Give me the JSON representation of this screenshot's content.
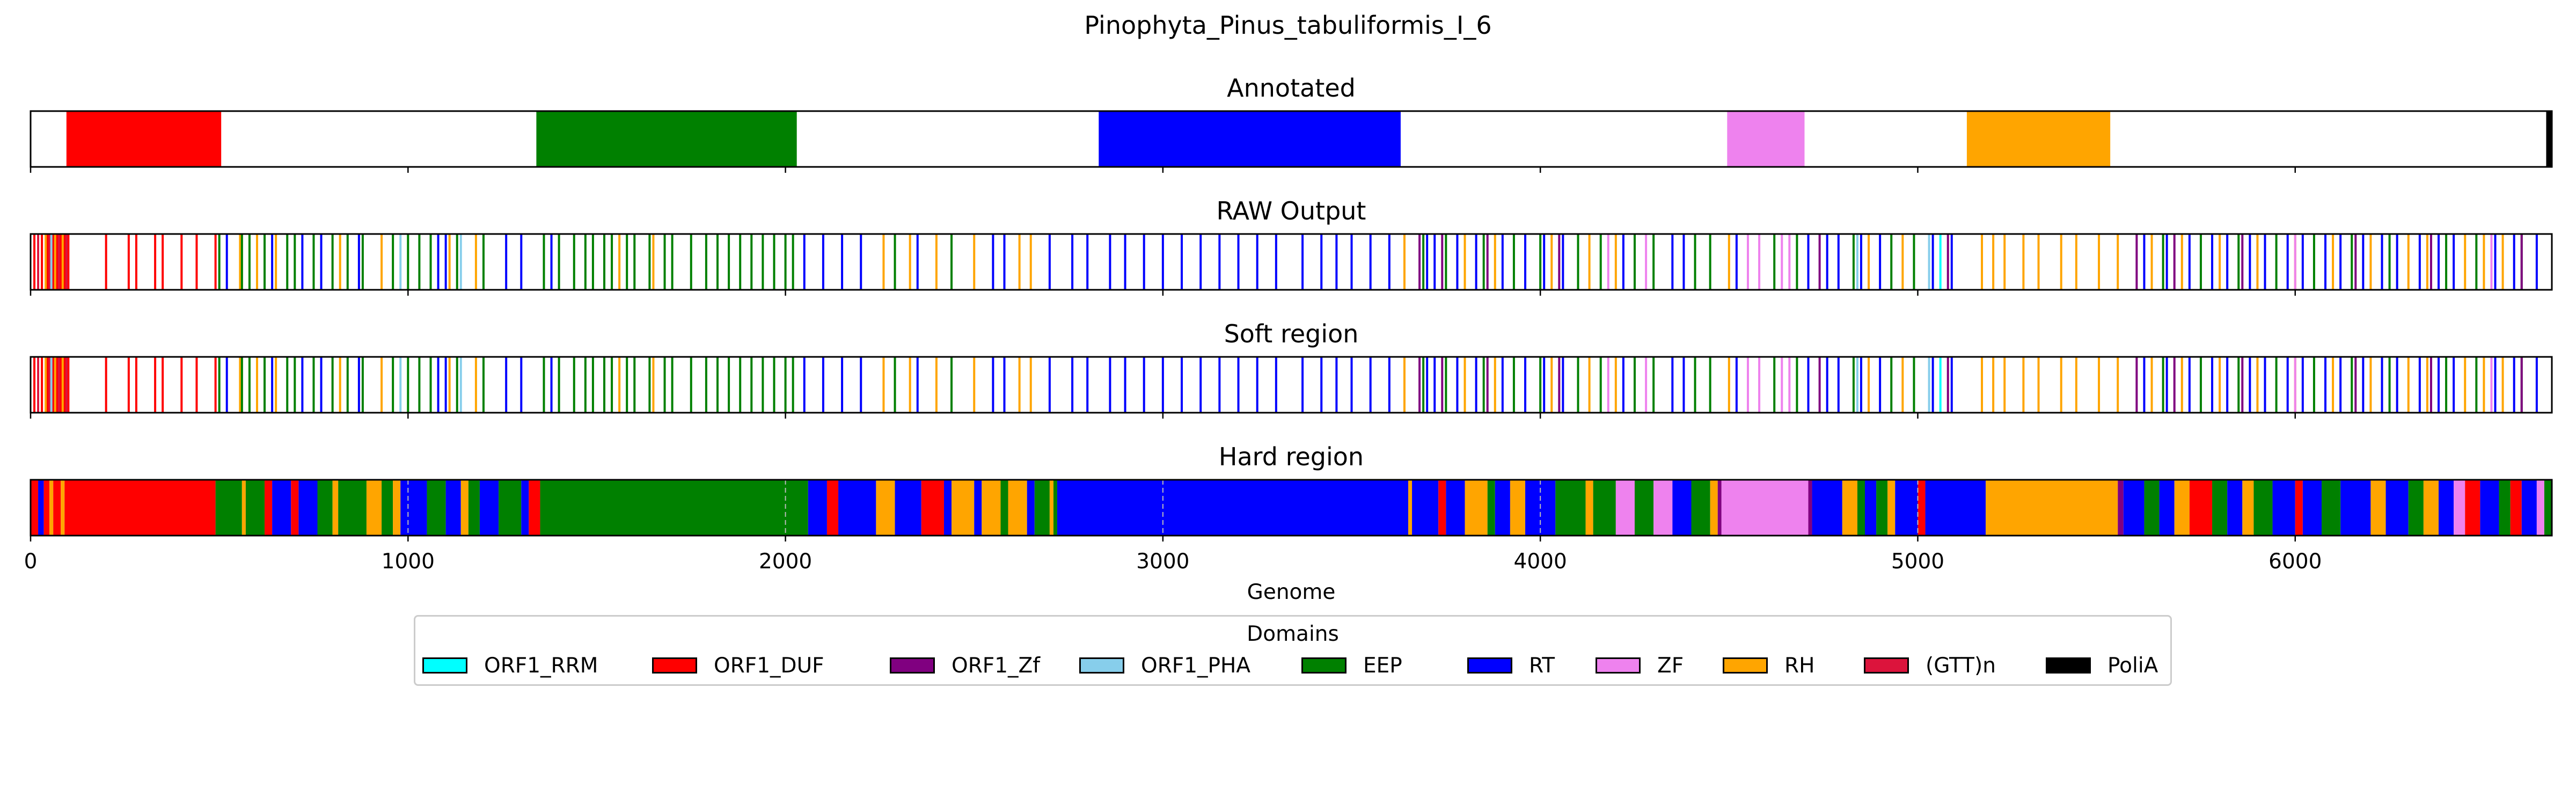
{
  "chart_data": {
    "type": "bar",
    "title": "Pinophyta_Pinus_tabuliformis_I_6",
    "xlabel": "Genome",
    "xlim": [
      0,
      6680
    ],
    "xticks": [
      0,
      1000,
      2000,
      3000,
      4000,
      5000,
      6000
    ],
    "legend": {
      "title": "Domains",
      "placement": "bottom-center",
      "entries": [
        {
          "name": "ORF1_RRM",
          "color": "#00ffff"
        },
        {
          "name": "ORF1_DUF",
          "color": "#ff0000"
        },
        {
          "name": "ORF1_Zf",
          "color": "#800080"
        },
        {
          "name": "ORF1_PHA",
          "color": "#87ceeb"
        },
        {
          "name": "EEP",
          "color": "#008000"
        },
        {
          "name": "RT",
          "color": "#0000ff"
        },
        {
          "name": "ZF",
          "color": "#ee82ee"
        },
        {
          "name": "RH",
          "color": "#ffa500"
        },
        {
          "name": "(GTT)n",
          "color": "#dc143c"
        },
        {
          "name": "PoliA",
          "color": "#000000"
        }
      ]
    },
    "panels": [
      {
        "title": "Annotated",
        "style": "segments",
        "segments": [
          {
            "domain": "ORF1_DUF",
            "start": 95,
            "end": 505
          },
          {
            "domain": "EEP",
            "start": 1340,
            "end": 2030
          },
          {
            "domain": "RT",
            "start": 2830,
            "end": 3630
          },
          {
            "domain": "ZF",
            "start": 4495,
            "end": 4700
          },
          {
            "domain": "RH",
            "start": 5130,
            "end": 5510
          },
          {
            "domain": "PoliA",
            "start": 6665,
            "end": 6680
          }
        ]
      },
      {
        "title": "RAW Output",
        "style": "lines",
        "lines": [
          {
            "domain": "ORF1_DUF",
            "x": [
              10,
              30,
              45,
              60,
              70,
              80,
              90,
              100,
              200,
              260,
              280,
              330,
              350,
              400,
              440,
              490
            ]
          },
          {
            "domain": "(GTT)n",
            "x": [
              20,
              50,
              75,
              95
            ]
          },
          {
            "domain": "RH",
            "x": [
              40,
              65,
              85,
              555,
              600,
              650,
              820,
              930,
              1110,
              1180,
              1560,
              1650,
              2260,
              2330,
              2400,
              2500,
              2620,
              2650,
              3640,
              3800,
              3880,
              4030,
              4130,
              4200,
              4500,
              4870,
              4960,
              5170,
              5200,
              5230,
              5280,
              5320,
              5380,
              5420,
              5480,
              5530,
              5620,
              5700,
              5800,
              5900,
              6000,
              6100,
              6200,
              6300,
              6350,
              6450,
              6500,
              6550
            ]
          },
          {
            "domain": "EEP",
            "x": [
              500,
              560,
              580,
              620,
              680,
              700,
              750,
              800,
              840,
              880,
              960,
              1000,
              1030,
              1060,
              1130,
              1200,
              1360,
              1400,
              1440,
              1470,
              1490,
              1520,
              1540,
              1580,
              1600,
              1640,
              1680,
              1700,
              1750,
              1790,
              1820,
              1850,
              1880,
              1910,
              1940,
              1970,
              2000,
              2020,
              2290,
              2440,
              3690,
              3750,
              3850,
              3930,
              4000,
              4100,
              4160,
              4250,
              4300,
              4410,
              4450,
              4620,
              4680,
              4830,
              4930,
              4990,
              5650,
              5750,
              5850,
              5950,
              6050,
              6150,
              6250,
              6400,
              6480,
              6600
            ]
          },
          {
            "domain": "RT",
            "x": [
              520,
              640,
              720,
              770,
              870,
              1080,
              1100,
              1260,
              1300,
              1380,
              2050,
              2100,
              2150,
              2200,
              2350,
              2550,
              2580,
              2700,
              2760,
              2800,
              2860,
              2900,
              2950,
              3000,
              3050,
              3100,
              3150,
              3200,
              3250,
              3300,
              3370,
              3420,
              3460,
              3500,
              3550,
              3600,
              3700,
              3720,
              3780,
              3830,
              3900,
              3960,
              4010,
              4060,
              4220,
              4350,
              4380,
              4520,
              4710,
              4760,
              4790,
              4850,
              4900,
              5040,
              5090,
              5600,
              5660,
              5720,
              5780,
              5820,
              5880,
              5920,
              5980,
              6020,
              6080,
              6120,
              6180,
              6230,
              6270,
              6330,
              6380,
              6420,
              6530,
              6580,
              6640
            ]
          },
          {
            "domain": "ZF",
            "x": [
              4180,
              4280,
              4550,
              4580,
              4640,
              4660,
              6000,
              6520
            ]
          },
          {
            "domain": "ORF1_Zf",
            "x": [
              3680,
              3740,
              3860,
              4050,
              4740,
              5080,
              5580,
              5680,
              5860,
              6160,
              6360,
              6600
            ]
          },
          {
            "domain": "ORF1_PHA",
            "x": [
              55,
              980,
              1140,
              4840,
              5030
            ]
          },
          {
            "domain": "ORF1_RRM",
            "x": [
              5060
            ]
          }
        ]
      },
      {
        "title": "Soft region",
        "style": "lines",
        "same_as": "RAW Output"
      },
      {
        "title": "Hard region",
        "style": "segments",
        "gridlines": [
          1000,
          2000,
          3000,
          4000,
          5000
        ],
        "segments": [
          {
            "domain": "ORF1_DUF",
            "start": 0,
            "end": 20
          },
          {
            "domain": "RT",
            "start": 20,
            "end": 35
          },
          {
            "domain": "ORF1_DUF",
            "start": 35,
            "end": 50
          },
          {
            "domain": "RH",
            "start": 50,
            "end": 60
          },
          {
            "domain": "ORF1_DUF",
            "start": 60,
            "end": 80
          },
          {
            "domain": "RH",
            "start": 80,
            "end": 90
          },
          {
            "domain": "ORF1_DUF",
            "start": 90,
            "end": 490
          },
          {
            "domain": "EEP",
            "start": 490,
            "end": 560
          },
          {
            "domain": "RH",
            "start": 560,
            "end": 570
          },
          {
            "domain": "EEP",
            "start": 570,
            "end": 620
          },
          {
            "domain": "ORF1_DUF",
            "start": 620,
            "end": 640
          },
          {
            "domain": "RT",
            "start": 640,
            "end": 690
          },
          {
            "domain": "ORF1_DUF",
            "start": 690,
            "end": 710
          },
          {
            "domain": "RT",
            "start": 710,
            "end": 760
          },
          {
            "domain": "EEP",
            "start": 760,
            "end": 800
          },
          {
            "domain": "RH",
            "start": 800,
            "end": 815
          },
          {
            "domain": "EEP",
            "start": 815,
            "end": 890
          },
          {
            "domain": "RH",
            "start": 890,
            "end": 930
          },
          {
            "domain": "EEP",
            "start": 930,
            "end": 960
          },
          {
            "domain": "RH",
            "start": 960,
            "end": 980
          },
          {
            "domain": "RT",
            "start": 980,
            "end": 1050
          },
          {
            "domain": "EEP",
            "start": 1050,
            "end": 1100
          },
          {
            "domain": "RT",
            "start": 1100,
            "end": 1140
          },
          {
            "domain": "RH",
            "start": 1140,
            "end": 1160
          },
          {
            "domain": "EEP",
            "start": 1160,
            "end": 1190
          },
          {
            "domain": "RT",
            "start": 1190,
            "end": 1240
          },
          {
            "domain": "EEP",
            "start": 1240,
            "end": 1300
          },
          {
            "domain": "RT",
            "start": 1300,
            "end": 1320
          },
          {
            "domain": "ORF1_DUF",
            "start": 1320,
            "end": 1350
          },
          {
            "domain": "EEP",
            "start": 1350,
            "end": 2060
          },
          {
            "domain": "RT",
            "start": 2060,
            "end": 2110
          },
          {
            "domain": "ORF1_DUF",
            "start": 2110,
            "end": 2140
          },
          {
            "domain": "RT",
            "start": 2140,
            "end": 2240
          },
          {
            "domain": "RH",
            "start": 2240,
            "end": 2290
          },
          {
            "domain": "RT",
            "start": 2290,
            "end": 2360
          },
          {
            "domain": "ORF1_DUF",
            "start": 2360,
            "end": 2420
          },
          {
            "domain": "RT",
            "start": 2420,
            "end": 2440
          },
          {
            "domain": "RH",
            "start": 2440,
            "end": 2500
          },
          {
            "domain": "RT",
            "start": 2500,
            "end": 2520
          },
          {
            "domain": "RH",
            "start": 2520,
            "end": 2570
          },
          {
            "domain": "EEP",
            "start": 2570,
            "end": 2590
          },
          {
            "domain": "RH",
            "start": 2590,
            "end": 2640
          },
          {
            "domain": "RT",
            "start": 2640,
            "end": 2660
          },
          {
            "domain": "EEP",
            "start": 2660,
            "end": 2700
          },
          {
            "domain": "RH",
            "start": 2700,
            "end": 2710
          },
          {
            "domain": "EEP",
            "start": 2710,
            "end": 2720
          },
          {
            "domain": "RT",
            "start": 2720,
            "end": 3650
          },
          {
            "domain": "RH",
            "start": 3650,
            "end": 3660
          },
          {
            "domain": "RT",
            "start": 3660,
            "end": 3730
          },
          {
            "domain": "ORF1_DUF",
            "start": 3730,
            "end": 3750
          },
          {
            "domain": "RT",
            "start": 3750,
            "end": 3800
          },
          {
            "domain": "RH",
            "start": 3800,
            "end": 3860
          },
          {
            "domain": "EEP",
            "start": 3860,
            "end": 3880
          },
          {
            "domain": "RT",
            "start": 3880,
            "end": 3920
          },
          {
            "domain": "RH",
            "start": 3920,
            "end": 3960
          },
          {
            "domain": "RT",
            "start": 3960,
            "end": 4040
          },
          {
            "domain": "EEP",
            "start": 4040,
            "end": 4120
          },
          {
            "domain": "RH",
            "start": 4120,
            "end": 4140
          },
          {
            "domain": "EEP",
            "start": 4140,
            "end": 4200
          },
          {
            "domain": "ZF",
            "start": 4200,
            "end": 4250
          },
          {
            "domain": "EEP",
            "start": 4250,
            "end": 4300
          },
          {
            "domain": "ZF",
            "start": 4300,
            "end": 4350
          },
          {
            "domain": "RT",
            "start": 4350,
            "end": 4400
          },
          {
            "domain": "EEP",
            "start": 4400,
            "end": 4450
          },
          {
            "domain": "RH",
            "start": 4450,
            "end": 4470
          },
          {
            "domain": "ORF1_Zf",
            "start": 4470,
            "end": 4480
          },
          {
            "domain": "ZF",
            "start": 4480,
            "end": 4710
          },
          {
            "domain": "ORF1_Zf",
            "start": 4710,
            "end": 4720
          },
          {
            "domain": "RT",
            "start": 4720,
            "end": 4800
          },
          {
            "domain": "RH",
            "start": 4800,
            "end": 4840
          },
          {
            "domain": "EEP",
            "start": 4840,
            "end": 4860
          },
          {
            "domain": "RT",
            "start": 4860,
            "end": 4890
          },
          {
            "domain": "EEP",
            "start": 4890,
            "end": 4920
          },
          {
            "domain": "RH",
            "start": 4920,
            "end": 4940
          },
          {
            "domain": "RT",
            "start": 4940,
            "end": 5000
          },
          {
            "domain": "ORF1_DUF",
            "start": 5000,
            "end": 5020
          },
          {
            "domain": "RT",
            "start": 5020,
            "end": 5180
          },
          {
            "domain": "RH",
            "start": 5180,
            "end": 5530
          },
          {
            "domain": "ORF1_Zf",
            "start": 5530,
            "end": 5545
          },
          {
            "domain": "RT",
            "start": 5545,
            "end": 5600
          },
          {
            "domain": "EEP",
            "start": 5600,
            "end": 5640
          },
          {
            "domain": "RT",
            "start": 5640,
            "end": 5680
          },
          {
            "domain": "RH",
            "start": 5680,
            "end": 5720
          },
          {
            "domain": "ORF1_DUF",
            "start": 5720,
            "end": 5780
          },
          {
            "domain": "EEP",
            "start": 5780,
            "end": 5820
          },
          {
            "domain": "RT",
            "start": 5820,
            "end": 5860
          },
          {
            "domain": "RH",
            "start": 5860,
            "end": 5890
          },
          {
            "domain": "EEP",
            "start": 5890,
            "end": 5940
          },
          {
            "domain": "RT",
            "start": 5940,
            "end": 6000
          },
          {
            "domain": "ORF1_DUF",
            "start": 6000,
            "end": 6020
          },
          {
            "domain": "RT",
            "start": 6020,
            "end": 6070
          },
          {
            "domain": "EEP",
            "start": 6070,
            "end": 6120
          },
          {
            "domain": "RT",
            "start": 6120,
            "end": 6200
          },
          {
            "domain": "RH",
            "start": 6200,
            "end": 6240
          },
          {
            "domain": "RT",
            "start": 6240,
            "end": 6300
          },
          {
            "domain": "EEP",
            "start": 6300,
            "end": 6340
          },
          {
            "domain": "RH",
            "start": 6340,
            "end": 6380
          },
          {
            "domain": "RT",
            "start": 6380,
            "end": 6420
          },
          {
            "domain": "ZF",
            "start": 6420,
            "end": 6450
          },
          {
            "domain": "ORF1_DUF",
            "start": 6450,
            "end": 6490
          },
          {
            "domain": "RT",
            "start": 6490,
            "end": 6540
          },
          {
            "domain": "EEP",
            "start": 6540,
            "end": 6570
          },
          {
            "domain": "ORF1_DUF",
            "start": 6570,
            "end": 6600
          },
          {
            "domain": "RT",
            "start": 6600,
            "end": 6640
          },
          {
            "domain": "ZF",
            "start": 6640,
            "end": 6660
          },
          {
            "domain": "EEP",
            "start": 6660,
            "end": 6680
          }
        ]
      }
    ]
  }
}
